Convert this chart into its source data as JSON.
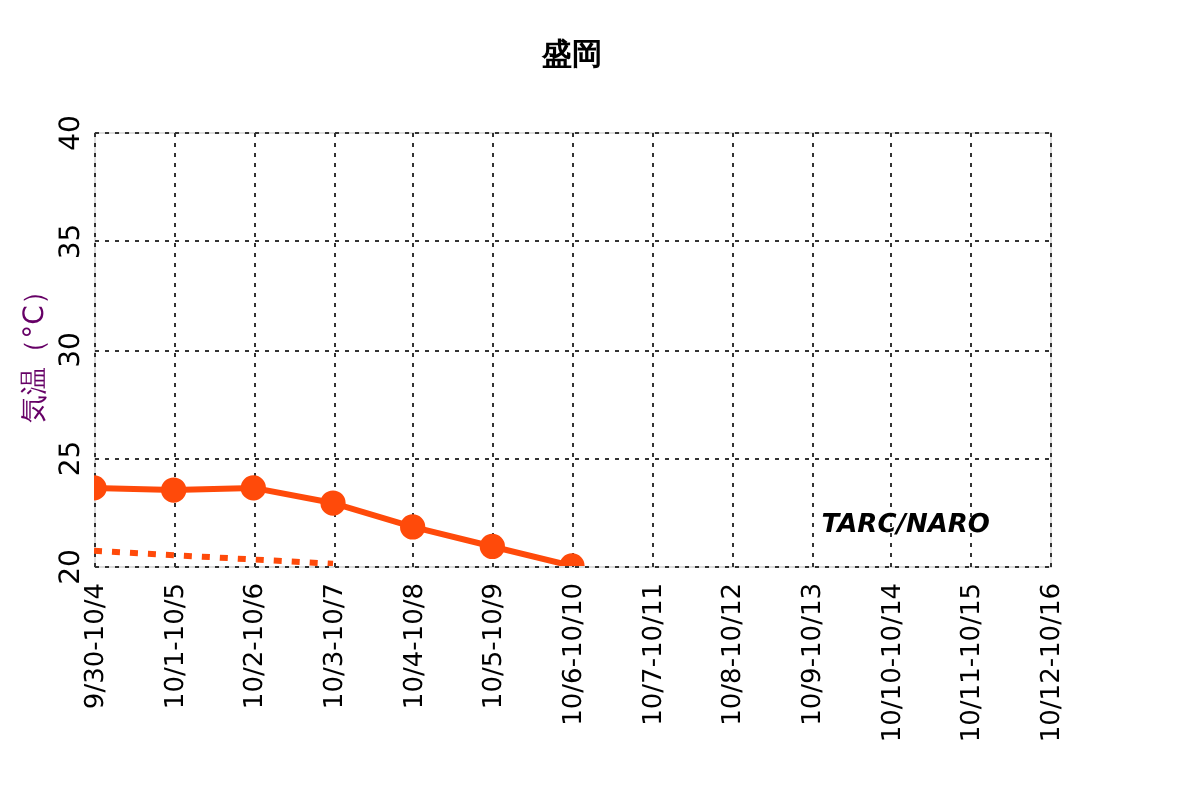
{
  "chart_data": {
    "type": "line",
    "title": "盛岡",
    "ylabel": "気温（°C）",
    "categories": [
      "9/30-10/4",
      "10/1-10/5",
      "10/2-10/6",
      "10/3-10/7",
      "10/4-10/8",
      "10/5-10/9",
      "10/6-10/10",
      "10/7-10/11",
      "10/8-10/12",
      "10/9-10/13",
      "10/10-10/14",
      "10/11-10/15",
      "10/12-10/16"
    ],
    "series": [
      {
        "color": "#ff4a0a",
        "marker": "circle",
        "line_style": "solid",
        "values": [
          23.6,
          23.5,
          23.6,
          22.9,
          21.8,
          20.9,
          20.0,
          null,
          null,
          null,
          null,
          null,
          null
        ]
      },
      {
        "color": "#ff4a0a",
        "marker": "none",
        "line_style": "dotted",
        "values": [
          20.7,
          20.5,
          20.3,
          20.1,
          null,
          null,
          null,
          null,
          null,
          null,
          null,
          null,
          null
        ]
      }
    ],
    "ylim": [
      20,
      40
    ],
    "yticks": [
      20,
      25,
      30,
      35,
      40
    ],
    "grid": true,
    "annotations": [
      "TARC/NARO"
    ]
  }
}
